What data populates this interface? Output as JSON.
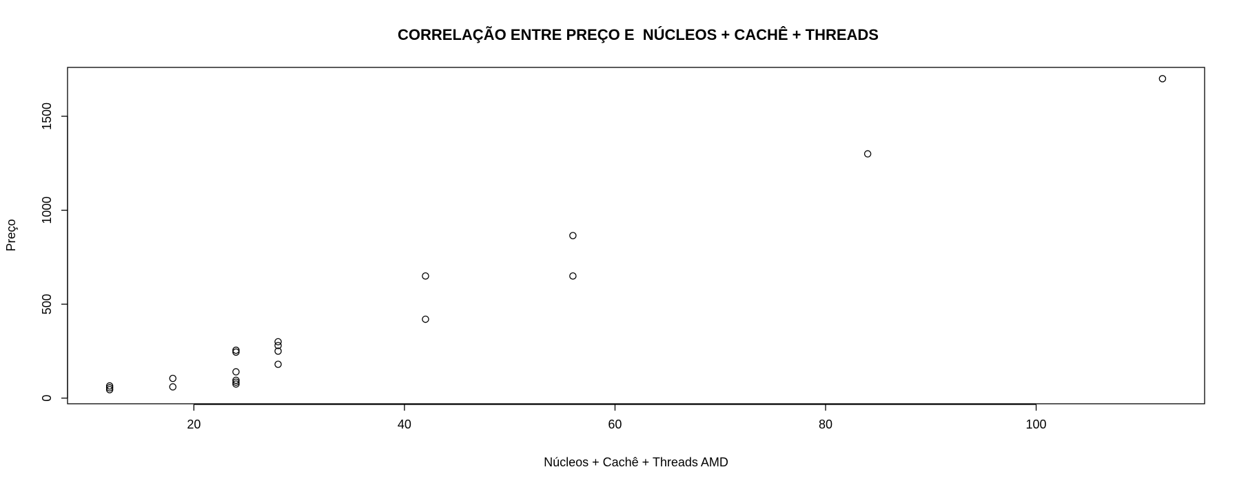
{
  "chart_data": {
    "type": "scatter",
    "title": "CORRELAÇÃO ENTRE PREÇO E  NÚCLEOS + CACHÊ + THREADS",
    "xlabel": "Núcleos + Cachê + Threads AMD",
    "ylabel": "Preço",
    "xlim": [
      8,
      116
    ],
    "ylim": [
      -30,
      1760
    ],
    "x_ticks": [
      20,
      40,
      60,
      80,
      100
    ],
    "y_ticks": [
      0,
      500,
      1000,
      1500
    ],
    "grid": false,
    "legend": "none",
    "marker": "open-circle",
    "colors": {
      "marker": "#000000",
      "axis": "#000000",
      "background": "#ffffff"
    },
    "points": [
      {
        "x": 12,
        "y": 45
      },
      {
        "x": 12,
        "y": 55
      },
      {
        "x": 12,
        "y": 65
      },
      {
        "x": 18,
        "y": 60
      },
      {
        "x": 18,
        "y": 105
      },
      {
        "x": 24,
        "y": 75
      },
      {
        "x": 24,
        "y": 85
      },
      {
        "x": 24,
        "y": 95
      },
      {
        "x": 24,
        "y": 140
      },
      {
        "x": 24,
        "y": 245
      },
      {
        "x": 24,
        "y": 255
      },
      {
        "x": 28,
        "y": 180
      },
      {
        "x": 28,
        "y": 250
      },
      {
        "x": 28,
        "y": 280
      },
      {
        "x": 28,
        "y": 300
      },
      {
        "x": 42,
        "y": 420
      },
      {
        "x": 42,
        "y": 650
      },
      {
        "x": 56,
        "y": 650
      },
      {
        "x": 56,
        "y": 865
      },
      {
        "x": 84,
        "y": 1300
      },
      {
        "x": 112,
        "y": 1700
      }
    ]
  }
}
